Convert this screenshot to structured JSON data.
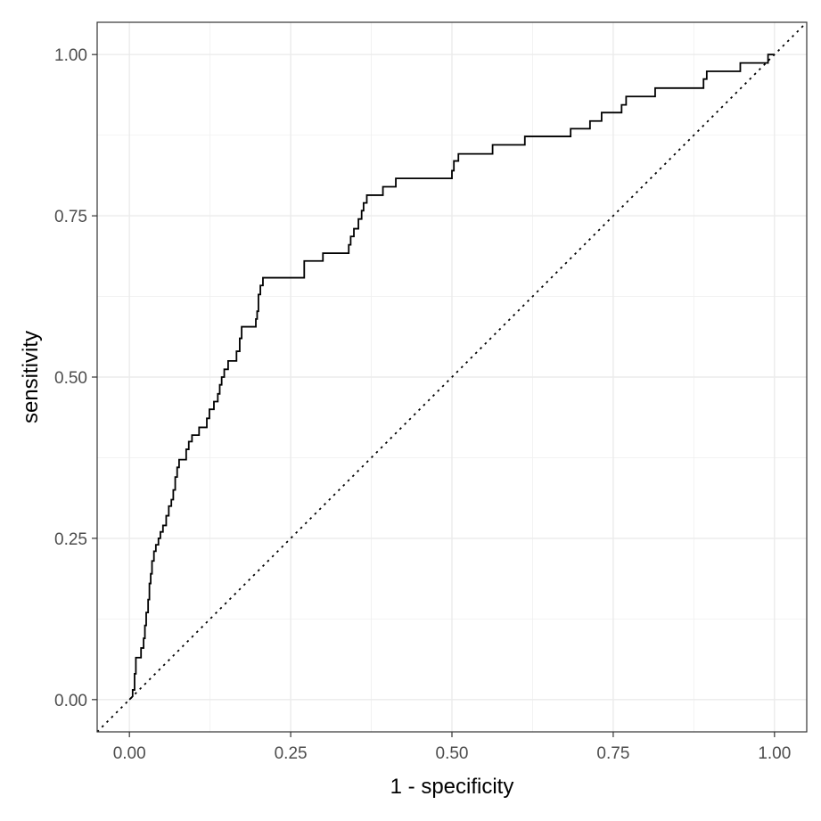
{
  "chart_data": {
    "type": "line",
    "title": "",
    "xlabel": "1 - specificity",
    "ylabel": "sensitivity",
    "xlim": [
      -0.05,
      1.05
    ],
    "ylim": [
      -0.05,
      1.05
    ],
    "x_ticks": [
      0.0,
      0.25,
      0.5,
      0.75,
      1.0
    ],
    "x_tick_labels": [
      "0.00",
      "0.25",
      "0.50",
      "0.75",
      "1.00"
    ],
    "y_ticks": [
      0.0,
      0.25,
      0.5,
      0.75,
      1.0
    ],
    "y_tick_labels": [
      "0.00",
      "0.25",
      "0.50",
      "0.75",
      "1.00"
    ],
    "grid": true,
    "series": [
      {
        "style": "solid-step",
        "color": "#000000",
        "points": [
          [
            0.0,
            0.0
          ],
          [
            0.005,
            0.005
          ],
          [
            0.005,
            0.015
          ],
          [
            0.008,
            0.015
          ],
          [
            0.008,
            0.04
          ],
          [
            0.01,
            0.04
          ],
          [
            0.01,
            0.065
          ],
          [
            0.018,
            0.065
          ],
          [
            0.018,
            0.08
          ],
          [
            0.022,
            0.08
          ],
          [
            0.022,
            0.095
          ],
          [
            0.024,
            0.095
          ],
          [
            0.024,
            0.115
          ],
          [
            0.026,
            0.115
          ],
          [
            0.026,
            0.135
          ],
          [
            0.029,
            0.135
          ],
          [
            0.029,
            0.155
          ],
          [
            0.031,
            0.155
          ],
          [
            0.031,
            0.18
          ],
          [
            0.033,
            0.18
          ],
          [
            0.033,
            0.195
          ],
          [
            0.035,
            0.195
          ],
          [
            0.035,
            0.215
          ],
          [
            0.038,
            0.215
          ],
          [
            0.038,
            0.23
          ],
          [
            0.041,
            0.23
          ],
          [
            0.041,
            0.24
          ],
          [
            0.045,
            0.24
          ],
          [
            0.045,
            0.25
          ],
          [
            0.048,
            0.25
          ],
          [
            0.048,
            0.26
          ],
          [
            0.052,
            0.26
          ],
          [
            0.052,
            0.27
          ],
          [
            0.057,
            0.27
          ],
          [
            0.057,
            0.285
          ],
          [
            0.061,
            0.285
          ],
          [
            0.061,
            0.3
          ],
          [
            0.065,
            0.3
          ],
          [
            0.065,
            0.31
          ],
          [
            0.068,
            0.31
          ],
          [
            0.068,
            0.325
          ],
          [
            0.071,
            0.325
          ],
          [
            0.071,
            0.345
          ],
          [
            0.074,
            0.345
          ],
          [
            0.074,
            0.36
          ],
          [
            0.077,
            0.36
          ],
          [
            0.077,
            0.372
          ],
          [
            0.088,
            0.372
          ],
          [
            0.088,
            0.388
          ],
          [
            0.092,
            0.388
          ],
          [
            0.092,
            0.4
          ],
          [
            0.097,
            0.4
          ],
          [
            0.097,
            0.41
          ],
          [
            0.108,
            0.41
          ],
          [
            0.108,
            0.422
          ],
          [
            0.12,
            0.422
          ],
          [
            0.12,
            0.436
          ],
          [
            0.124,
            0.436
          ],
          [
            0.124,
            0.45
          ],
          [
            0.131,
            0.45
          ],
          [
            0.131,
            0.462
          ],
          [
            0.137,
            0.462
          ],
          [
            0.137,
            0.474
          ],
          [
            0.14,
            0.474
          ],
          [
            0.14,
            0.488
          ],
          [
            0.143,
            0.488
          ],
          [
            0.143,
            0.5
          ],
          [
            0.147,
            0.5
          ],
          [
            0.147,
            0.512
          ],
          [
            0.153,
            0.512
          ],
          [
            0.153,
            0.525
          ],
          [
            0.166,
            0.525
          ],
          [
            0.166,
            0.54
          ],
          [
            0.171,
            0.54
          ],
          [
            0.171,
            0.56
          ],
          [
            0.174,
            0.56
          ],
          [
            0.174,
            0.578
          ],
          [
            0.196,
            0.578
          ],
          [
            0.196,
            0.59
          ],
          [
            0.198,
            0.59
          ],
          [
            0.198,
            0.602
          ],
          [
            0.2,
            0.602
          ],
          [
            0.2,
            0.628
          ],
          [
            0.203,
            0.628
          ],
          [
            0.203,
            0.642
          ],
          [
            0.207,
            0.642
          ],
          [
            0.207,
            0.654
          ],
          [
            0.271,
            0.654
          ],
          [
            0.271,
            0.68
          ],
          [
            0.3,
            0.68
          ],
          [
            0.3,
            0.692
          ],
          [
            0.34,
            0.692
          ],
          [
            0.34,
            0.705
          ],
          [
            0.343,
            0.705
          ],
          [
            0.343,
            0.718
          ],
          [
            0.348,
            0.718
          ],
          [
            0.348,
            0.73
          ],
          [
            0.355,
            0.73
          ],
          [
            0.355,
            0.745
          ],
          [
            0.36,
            0.745
          ],
          [
            0.36,
            0.758
          ],
          [
            0.363,
            0.758
          ],
          [
            0.363,
            0.77
          ],
          [
            0.368,
            0.77
          ],
          [
            0.368,
            0.782
          ],
          [
            0.393,
            0.782
          ],
          [
            0.393,
            0.795
          ],
          [
            0.413,
            0.795
          ],
          [
            0.413,
            0.808
          ],
          [
            0.5,
            0.808
          ],
          [
            0.5,
            0.82
          ],
          [
            0.503,
            0.82
          ],
          [
            0.503,
            0.835
          ],
          [
            0.51,
            0.835
          ],
          [
            0.51,
            0.846
          ],
          [
            0.563,
            0.846
          ],
          [
            0.563,
            0.86
          ],
          [
            0.613,
            0.86
          ],
          [
            0.613,
            0.873
          ],
          [
            0.684,
            0.873
          ],
          [
            0.684,
            0.885
          ],
          [
            0.714,
            0.885
          ],
          [
            0.714,
            0.897
          ],
          [
            0.732,
            0.897
          ],
          [
            0.732,
            0.91
          ],
          [
            0.763,
            0.91
          ],
          [
            0.763,
            0.922
          ],
          [
            0.77,
            0.922
          ],
          [
            0.77,
            0.935
          ],
          [
            0.815,
            0.935
          ],
          [
            0.815,
            0.948
          ],
          [
            0.89,
            0.948
          ],
          [
            0.89,
            0.962
          ],
          [
            0.895,
            0.962
          ],
          [
            0.895,
            0.974
          ],
          [
            0.947,
            0.974
          ],
          [
            0.947,
            0.987
          ],
          [
            0.99,
            0.987
          ],
          [
            0.99,
            1.0
          ],
          [
            1.0,
            1.0
          ]
        ]
      },
      {
        "style": "dotted",
        "color": "#000000",
        "points": [
          [
            -0.05,
            -0.05
          ],
          [
            1.05,
            1.05
          ]
        ]
      }
    ]
  }
}
